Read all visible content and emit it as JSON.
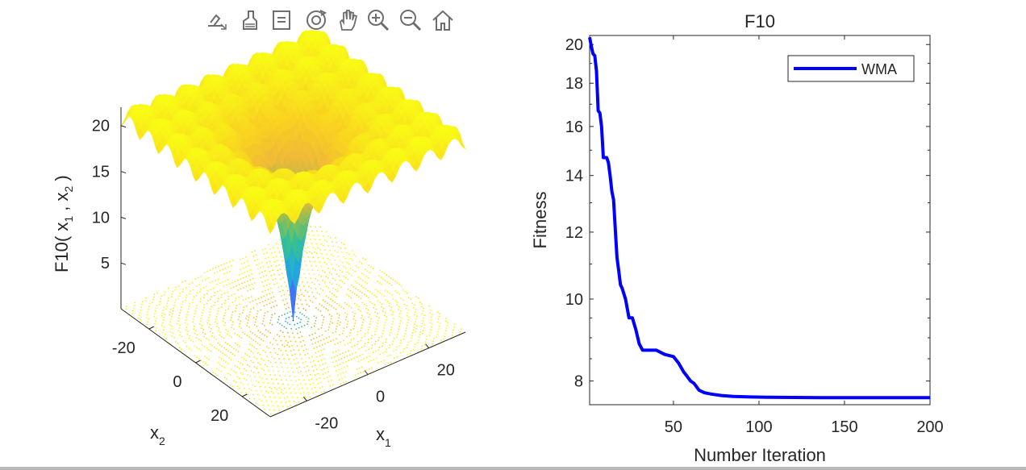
{
  "toolbar": {
    "buttons": [
      {
        "name": "export-icon"
      },
      {
        "name": "brush-icon"
      },
      {
        "name": "datatip-icon"
      },
      {
        "name": "rotate-3d-icon"
      },
      {
        "name": "pan-hand-icon"
      },
      {
        "name": "zoom-in-icon"
      },
      {
        "name": "zoom-out-icon"
      },
      {
        "name": "home-icon"
      }
    ]
  },
  "chart_data": [
    {
      "type": "surface3d",
      "title": "",
      "zlabel": "F10( x₁ , x₂ )",
      "zlabel_parts": {
        "pre": "F10( x",
        "sub1": "1",
        "mid": " , x",
        "sub2": "2",
        "post": " )"
      },
      "xlabel": "x",
      "xlabel_sub": "1",
      "ylabel": "x",
      "ylabel_sub": "2",
      "xticks": [
        -20,
        0,
        20
      ],
      "yticks": [
        -20,
        0,
        20
      ],
      "zticks": [
        5,
        10,
        15,
        20
      ],
      "xlim": [
        -32,
        32
      ],
      "ylim": [
        -32,
        32
      ],
      "zlim": [
        0,
        22
      ],
      "function": "ackley",
      "colormap": [
        "#3e26a8",
        "#3e7bfb",
        "#1db0d9",
        "#3ac08f",
        "#9dbd4c",
        "#f0b937",
        "#f9d21f",
        "#f9fb14"
      ],
      "tick_labels": {
        "z": [
          "5",
          "10",
          "15",
          "20"
        ],
        "x": [
          "-20",
          "0",
          "20"
        ],
        "y": [
          "-20",
          "0",
          "20"
        ]
      }
    },
    {
      "type": "line",
      "title": "F10",
      "xlabel": "Number Iteration",
      "ylabel": "Fitness",
      "yscale": "log",
      "xlim": [
        1,
        200
      ],
      "ylim": [
        7.5,
        20.5
      ],
      "xticks": [
        50,
        100,
        150,
        200
      ],
      "yticks": [
        8,
        10,
        12,
        14,
        16,
        18,
        20
      ],
      "xtick_labels": [
        "50",
        "100",
        "150",
        "200"
      ],
      "ytick_labels": [
        "8",
        "10",
        "12",
        "14",
        "16",
        "18",
        "20"
      ],
      "legend": {
        "position": "top-right",
        "entries": [
          "WMA"
        ]
      },
      "series": [
        {
          "name": "WMA",
          "color": "#0000ff",
          "x": [
            1,
            2,
            3,
            4,
            5,
            6,
            7,
            8,
            9,
            10,
            11,
            12,
            13,
            14,
            15,
            16,
            17,
            18,
            19,
            20,
            22,
            24,
            26,
            28,
            30,
            32,
            35,
            37,
            40,
            45,
            50,
            53,
            56,
            58,
            60,
            62,
            65,
            68,
            72,
            78,
            85,
            95,
            105,
            120,
            140,
            160,
            180,
            200
          ],
          "y": [
            20.4,
            19.9,
            19.5,
            19.4,
            18.6,
            16.7,
            16.6,
            16.0,
            14.7,
            14.7,
            14.7,
            14.5,
            14.0,
            13.4,
            13.1,
            12.1,
            11.2,
            10.8,
            10.4,
            10.3,
            10.0,
            9.5,
            9.5,
            9.2,
            8.85,
            8.7,
            8.7,
            8.7,
            8.7,
            8.6,
            8.55,
            8.4,
            8.2,
            8.1,
            8.0,
            7.95,
            7.8,
            7.75,
            7.72,
            7.69,
            7.67,
            7.66,
            7.655,
            7.65,
            7.645,
            7.645,
            7.645,
            7.645
          ]
        }
      ]
    }
  ]
}
